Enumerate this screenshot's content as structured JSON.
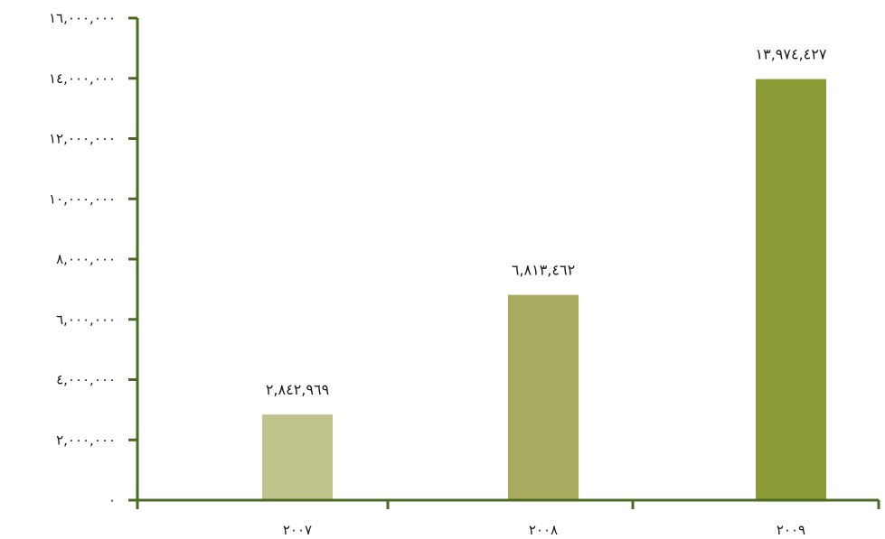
{
  "chart_data": {
    "type": "bar",
    "title": "",
    "xlabel": "",
    "ylabel": "",
    "categories": [
      "٢٠٠٧",
      "٢٠٠٨",
      "٢٠٠٩"
    ],
    "values": [
      2842969,
      6813462,
      13974427
    ],
    "value_labels": [
      "٢,٨٤٢,٩٦٩",
      "٦,٨١٣,٤٦٢",
      "١٣,٩٧٤,٤٢٧"
    ],
    "bar_colors": [
      "#c0c48c",
      "#a8ab5f",
      "#8c9937"
    ],
    "axis_color": "#4a6b23",
    "ylim": [
      0,
      16000000
    ],
    "yticks": [
      0,
      2000000,
      4000000,
      6000000,
      8000000,
      10000000,
      12000000,
      14000000,
      16000000
    ],
    "ytick_labels": [
      "٠",
      "٢,٠٠٠,٠٠٠",
      "٤,٠٠٠,٠٠٠",
      "٦,٠٠٠,٠٠٠",
      "٨,٠٠٠,٠٠٠",
      "١٠,٠٠٠,٠٠٠",
      "١٢,٠٠٠,٠٠٠",
      "١٤,٠٠٠,٠٠٠",
      "١٦,٠٠٠,٠٠٠"
    ],
    "grid": false,
    "legend": "none"
  }
}
